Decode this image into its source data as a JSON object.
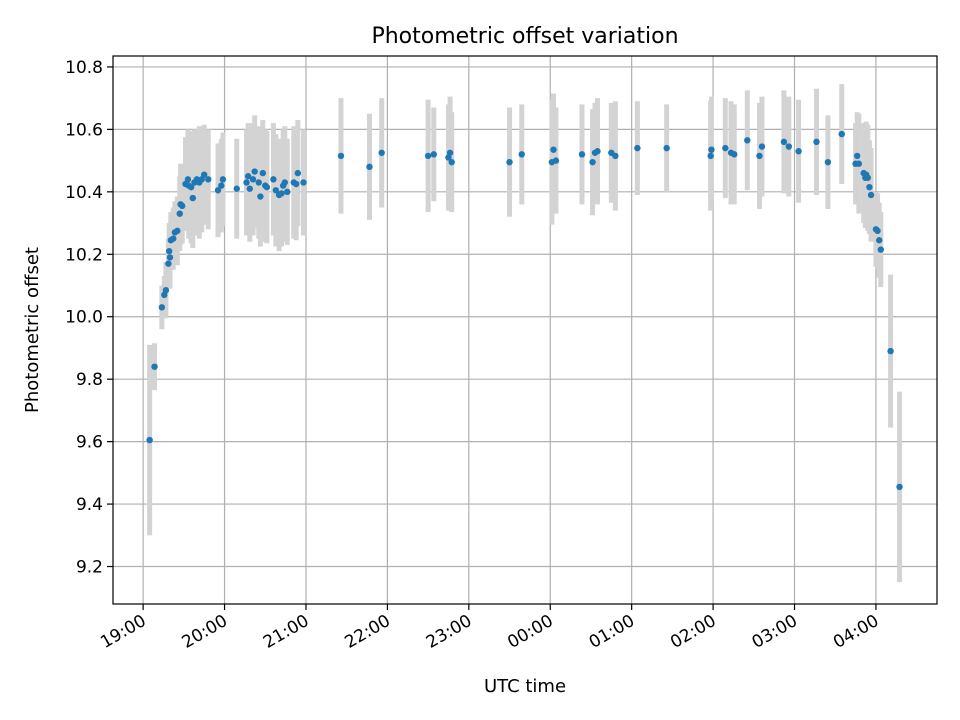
{
  "chart_data": {
    "type": "scatter",
    "title": "Photometric offset variation",
    "xlabel": "UTC time",
    "ylabel": "Photometric offset",
    "x_unit": "hours after 19:00 UTC",
    "xlim": [
      -0.37,
      9.75
    ],
    "ylim": [
      9.08,
      10.835
    ],
    "grid": true,
    "x_ticks": [
      {
        "value": 0,
        "label": "19:00"
      },
      {
        "value": 1,
        "label": "20:00"
      },
      {
        "value": 2,
        "label": "21:00"
      },
      {
        "value": 3,
        "label": "22:00"
      },
      {
        "value": 4,
        "label": "23:00"
      },
      {
        "value": 5,
        "label": "00:00"
      },
      {
        "value": 6,
        "label": "01:00"
      },
      {
        "value": 7,
        "label": "02:00"
      },
      {
        "value": 8,
        "label": "03:00"
      },
      {
        "value": 9,
        "label": "04:00"
      }
    ],
    "y_ticks": [
      {
        "value": 9.2,
        "label": "9.2"
      },
      {
        "value": 9.4,
        "label": "9.4"
      },
      {
        "value": 9.6,
        "label": "9.6"
      },
      {
        "value": 9.8,
        "label": "9.8"
      },
      {
        "value": 10.0,
        "label": "10.0"
      },
      {
        "value": 10.2,
        "label": "10.2"
      },
      {
        "value": 10.4,
        "label": "10.4"
      },
      {
        "value": 10.6,
        "label": "10.6"
      },
      {
        "value": 10.8,
        "label": "10.8"
      }
    ],
    "colors": {
      "point": "#1f77b4",
      "errorbar": "#d3d3d3",
      "grid": "#b0b0b0"
    },
    "points": [
      [
        0.08,
        9.605,
        0.305
      ],
      [
        0.14,
        9.84,
        0.075
      ],
      [
        0.23,
        10.03,
        0.07
      ],
      [
        0.26,
        10.07,
        0.06
      ],
      [
        0.28,
        10.085,
        0.09
      ],
      [
        0.31,
        10.17,
        0.08
      ],
      [
        0.32,
        10.21,
        0.09
      ],
      [
        0.33,
        10.19,
        0.1
      ],
      [
        0.34,
        10.245,
        0.09
      ],
      [
        0.37,
        10.25,
        0.1
      ],
      [
        0.39,
        10.27,
        0.1
      ],
      [
        0.42,
        10.275,
        0.11
      ],
      [
        0.45,
        10.33,
        0.12
      ],
      [
        0.46,
        10.36,
        0.13
      ],
      [
        0.48,
        10.355,
        0.12
      ],
      [
        0.52,
        10.425,
        0.15
      ],
      [
        0.55,
        10.44,
        0.16
      ],
      [
        0.56,
        10.42,
        0.17
      ],
      [
        0.59,
        10.415,
        0.18
      ],
      [
        0.61,
        10.38,
        0.16
      ],
      [
        0.63,
        10.43,
        0.17
      ],
      [
        0.66,
        10.44,
        0.16
      ],
      [
        0.69,
        10.43,
        0.18
      ],
      [
        0.72,
        10.44,
        0.17
      ],
      [
        0.75,
        10.455,
        0.16
      ],
      [
        0.8,
        10.44,
        0.16
      ],
      [
        0.92,
        10.405,
        0.15
      ],
      [
        0.96,
        10.42,
        0.15
      ],
      [
        0.98,
        10.44,
        0.15
      ],
      [
        1.15,
        10.41,
        0.16
      ],
      [
        1.27,
        10.43,
        0.17
      ],
      [
        1.29,
        10.45,
        0.17
      ],
      [
        1.31,
        10.41,
        0.17
      ],
      [
        1.35,
        10.44,
        0.18
      ],
      [
        1.37,
        10.465,
        0.18
      ],
      [
        1.42,
        10.43,
        0.18
      ],
      [
        1.44,
        10.385,
        0.16
      ],
      [
        1.47,
        10.46,
        0.17
      ],
      [
        1.5,
        10.42,
        0.18
      ],
      [
        1.52,
        10.415,
        0.18
      ],
      [
        1.6,
        10.44,
        0.18
      ],
      [
        1.63,
        10.405,
        0.18
      ],
      [
        1.67,
        10.39,
        0.18
      ],
      [
        1.7,
        10.395,
        0.17
      ],
      [
        1.72,
        10.42,
        0.18
      ],
      [
        1.74,
        10.43,
        0.18
      ],
      [
        1.77,
        10.4,
        0.17
      ],
      [
        1.85,
        10.43,
        0.18
      ],
      [
        1.88,
        10.425,
        0.18
      ],
      [
        1.9,
        10.46,
        0.17
      ],
      [
        1.97,
        10.43,
        0.17
      ],
      [
        2.43,
        10.515,
        0.185
      ],
      [
        2.78,
        10.48,
        0.17
      ],
      [
        2.93,
        10.525,
        0.175
      ],
      [
        3.5,
        10.515,
        0.18
      ],
      [
        3.57,
        10.52,
        0.15
      ],
      [
        3.75,
        10.51,
        0.17
      ],
      [
        3.77,
        10.525,
        0.18
      ],
      [
        3.79,
        10.495,
        0.16
      ],
      [
        4.5,
        10.495,
        0.175
      ],
      [
        4.65,
        10.52,
        0.16
      ],
      [
        5.02,
        10.495,
        0.2
      ],
      [
        5.04,
        10.535,
        0.18
      ],
      [
        5.07,
        10.5,
        0.17
      ],
      [
        5.39,
        10.52,
        0.16
      ],
      [
        5.52,
        10.495,
        0.17
      ],
      [
        5.55,
        10.525,
        0.16
      ],
      [
        5.58,
        10.53,
        0.17
      ],
      [
        5.75,
        10.525,
        0.16
      ],
      [
        5.8,
        10.515,
        0.175
      ],
      [
        6.07,
        10.54,
        0.15
      ],
      [
        6.43,
        10.54,
        0.14
      ],
      [
        6.97,
        10.515,
        0.175
      ],
      [
        6.98,
        10.535,
        0.17
      ],
      [
        7.15,
        10.54,
        0.16
      ],
      [
        7.22,
        10.525,
        0.165
      ],
      [
        7.26,
        10.52,
        0.16
      ],
      [
        7.42,
        10.565,
        0.16
      ],
      [
        7.57,
        10.515,
        0.17
      ],
      [
        7.6,
        10.545,
        0.16
      ],
      [
        7.87,
        10.56,
        0.165
      ],
      [
        7.93,
        10.545,
        0.16
      ],
      [
        8.05,
        10.53,
        0.165
      ],
      [
        8.27,
        10.56,
        0.17
      ],
      [
        8.41,
        10.495,
        0.15
      ],
      [
        8.58,
        10.585,
        0.16
      ],
      [
        8.75,
        10.49,
        0.13
      ],
      [
        8.77,
        10.515,
        0.14
      ],
      [
        8.79,
        10.49,
        0.16
      ],
      [
        8.85,
        10.46,
        0.16
      ],
      [
        8.87,
        10.445,
        0.16
      ],
      [
        8.88,
        10.455,
        0.17
      ],
      [
        8.9,
        10.445,
        0.17
      ],
      [
        8.92,
        10.415,
        0.15
      ],
      [
        8.94,
        10.39,
        0.15
      ],
      [
        9.0,
        10.28,
        0.12
      ],
      [
        9.02,
        10.275,
        0.12
      ],
      [
        9.04,
        10.245,
        0.12
      ],
      [
        9.06,
        10.215,
        0.12
      ],
      [
        9.18,
        9.89,
        0.245
      ],
      [
        9.29,
        9.455,
        0.305
      ]
    ]
  }
}
